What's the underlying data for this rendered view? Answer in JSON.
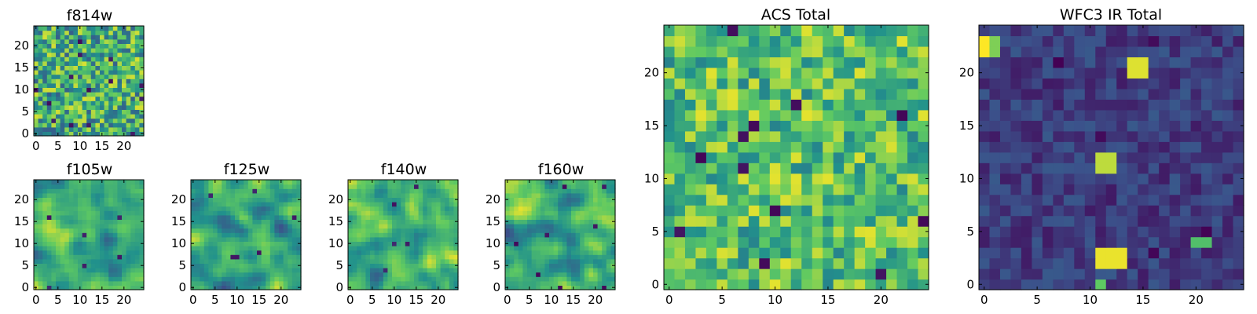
{
  "colormap": "viridis",
  "palette": [
    "#440154",
    "#3b528b",
    "#21918c",
    "#5ec962",
    "#fde725"
  ],
  "chart_data": [
    {
      "type": "heatmap",
      "id": "f814w",
      "title": "f814w",
      "grid": 25,
      "xlim": [
        0,
        24
      ],
      "ylim": [
        0,
        24
      ],
      "xticks": [
        "0",
        "5",
        "10",
        "15",
        "20"
      ],
      "yticks": [
        "0",
        "5",
        "10",
        "15",
        "20"
      ],
      "bias": 0.62,
      "spread": 0.32,
      "smooth": 0,
      "outliers": 14,
      "outlier_value": 0.02
    },
    {
      "type": "heatmap",
      "id": "f105w",
      "title": "f105w",
      "grid": 25,
      "xlim": [
        0,
        24
      ],
      "ylim": [
        0,
        24
      ],
      "xticks": [
        "0",
        "5",
        "10",
        "15",
        "20"
      ],
      "yticks": [
        "0",
        "5",
        "10",
        "15",
        "20"
      ],
      "bias": 0.62,
      "spread": 0.3,
      "smooth": 2,
      "outliers": 6,
      "outlier_value": 0.05
    },
    {
      "type": "heatmap",
      "id": "f125w",
      "title": "f125w",
      "grid": 25,
      "xlim": [
        0,
        24
      ],
      "ylim": [
        0,
        24
      ],
      "xticks": [
        "0",
        "5",
        "10",
        "15",
        "20"
      ],
      "yticks": [
        "0",
        "5",
        "10",
        "15",
        "20"
      ],
      "bias": 0.58,
      "spread": 0.34,
      "smooth": 2,
      "outliers": 6,
      "outlier_value": 0.05
    },
    {
      "type": "heatmap",
      "id": "f140w",
      "title": "f140w",
      "grid": 25,
      "xlim": [
        0,
        24
      ],
      "ylim": [
        0,
        24
      ],
      "xticks": [
        "0",
        "5",
        "10",
        "15",
        "20"
      ],
      "yticks": [
        "0",
        "5",
        "10",
        "15",
        "20"
      ],
      "bias": 0.63,
      "spread": 0.32,
      "smooth": 2,
      "outliers": 5,
      "outlier_value": 0.05
    },
    {
      "type": "heatmap",
      "id": "f160w",
      "title": "f160w",
      "grid": 25,
      "xlim": [
        0,
        24
      ],
      "ylim": [
        0,
        24
      ],
      "xticks": [
        "0",
        "5",
        "10",
        "15",
        "20"
      ],
      "yticks": [
        "0",
        "5",
        "10",
        "15",
        "20"
      ],
      "bias": 0.6,
      "spread": 0.36,
      "smooth": 2,
      "outliers": 8,
      "outlier_value": 0.02
    },
    {
      "type": "heatmap",
      "id": "acs-total",
      "title": "ACS Total",
      "grid": 25,
      "xlim": [
        0,
        24
      ],
      "ylim": [
        0,
        24
      ],
      "xticks": [
        "0",
        "5",
        "10",
        "15",
        "20"
      ],
      "yticks": [
        "0",
        "5",
        "10",
        "15",
        "20"
      ],
      "bias": 0.7,
      "spread": 0.26,
      "smooth": 0,
      "outliers": 12,
      "outlier_value": 0.0
    },
    {
      "type": "heatmap",
      "id": "wfc3-ir-total",
      "title": "WFC3 IR Total",
      "grid": 25,
      "xlim": [
        0,
        24
      ],
      "ylim": [
        0,
        24
      ],
      "xticks": [
        "0",
        "5",
        "10",
        "15",
        "20"
      ],
      "yticks": [
        "0",
        "5",
        "10",
        "15",
        "20"
      ],
      "bias": 0.18,
      "spread": 0.1,
      "smooth": 0,
      "outliers": 8,
      "outlier_value": 0.0,
      "hotspots": [
        {
          "x": 0,
          "y": 22,
          "w": 1,
          "h": 2,
          "value": 1.0
        },
        {
          "x": 1,
          "y": 22,
          "w": 1,
          "h": 2,
          "value": 0.8
        },
        {
          "x": 14,
          "y": 20,
          "w": 2,
          "h": 2,
          "value": 0.95
        },
        {
          "x": 11,
          "y": 11,
          "w": 2,
          "h": 2,
          "value": 0.9
        },
        {
          "x": 11,
          "y": 2,
          "w": 3,
          "h": 2,
          "value": 0.97
        },
        {
          "x": 20,
          "y": 4,
          "w": 2,
          "h": 1,
          "value": 0.7
        },
        {
          "x": 11,
          "y": 0,
          "w": 1,
          "h": 1,
          "value": 0.75
        }
      ]
    }
  ]
}
